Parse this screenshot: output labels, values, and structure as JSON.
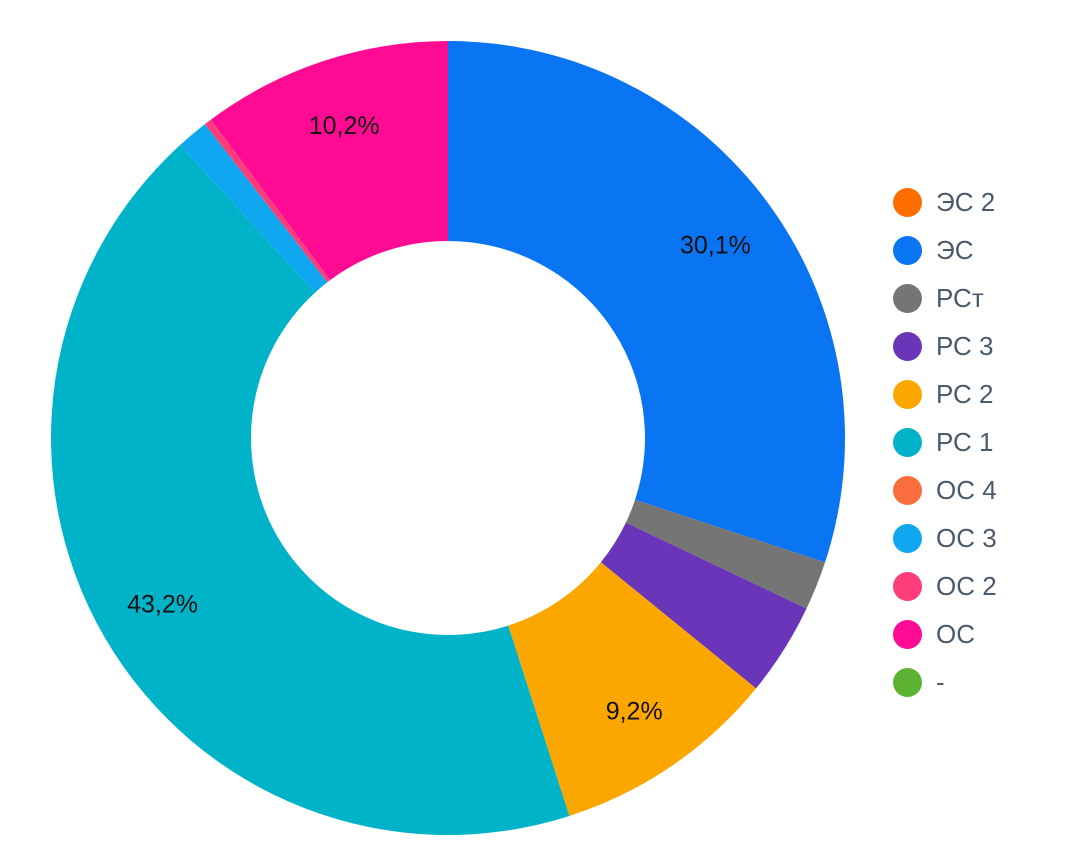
{
  "chart_data": {
    "type": "pie",
    "donut": true,
    "legend_position": "right",
    "categories": [
      "ЭС 2",
      "ЭС",
      "РСт",
      "РС 3",
      "РС 2",
      "РС 1",
      "ОС 4",
      "ОС 3",
      "ОС 2",
      "ОС",
      "-"
    ],
    "colors": [
      "#ff6d00",
      "#0a75f2",
      "#757575",
      "#6a35b8",
      "#fca600",
      "#00b3c8",
      "#fa6e3e",
      "#10a7f1",
      "#fc3d7a",
      "#ff0b93",
      "#5bb233"
    ],
    "values": [
      0,
      30.1,
      2.0,
      3.8,
      9.2,
      43.2,
      0,
      1.3,
      0.3,
      10.2,
      0
    ],
    "data_labels": [
      "",
      "30,1%",
      "",
      "",
      "9,2%",
      "43,2%",
      "",
      "",
      "",
      "10,2%",
      ""
    ]
  }
}
